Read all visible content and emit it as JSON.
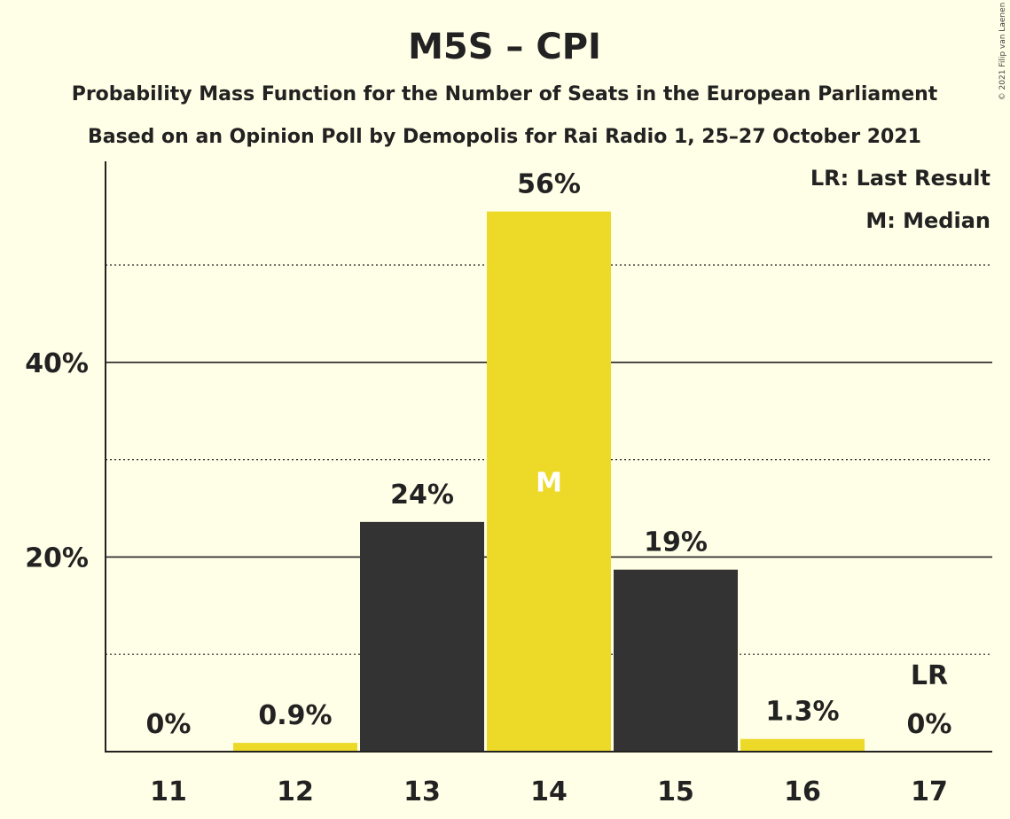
{
  "chart_data": {
    "type": "bar",
    "title": "M5S – CPI",
    "subtitle_1": "Probability Mass Function for the Number of Seats in the European Parliament",
    "subtitle_2": "Based on an Opinion Poll by Demopolis for Rai Radio 1, 25–27 October 2021",
    "categories": [
      "11",
      "12",
      "13",
      "14",
      "15",
      "16",
      "17"
    ],
    "values": [
      0,
      0.9,
      23.6,
      55.5,
      18.7,
      1.3,
      0
    ],
    "data_labels": [
      "0%",
      "0.9%",
      "24%",
      "56%",
      "19%",
      "1.3%",
      "0%"
    ],
    "bar_colors": [
      "#EDD928",
      "#EDD928",
      "#333333",
      "#EDD928",
      "#333333",
      "#EDD928",
      "#EDD928"
    ],
    "ylim": [
      0,
      60
    ],
    "major_ticks": [
      20,
      40
    ],
    "major_tick_labels": [
      "20%",
      "40%"
    ],
    "minor_gridlines": [
      10,
      30,
      50
    ],
    "median_index": 3,
    "median_marker": "M",
    "last_result_index": 6,
    "last_result_marker": "LR",
    "legend": {
      "placement": "top-right",
      "items": [
        "LR: Last Result",
        "M: Median"
      ]
    },
    "credit": "© 2021 Filip van Laenen"
  }
}
